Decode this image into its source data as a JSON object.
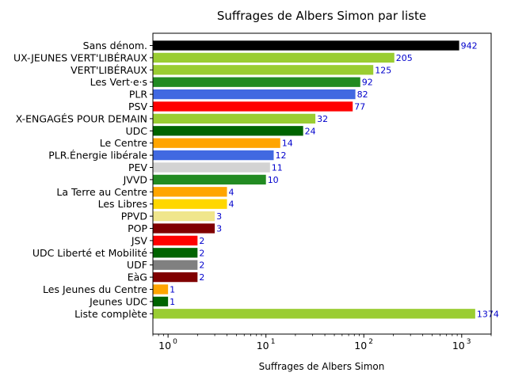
{
  "chart_data": {
    "type": "bar",
    "orientation": "horizontal",
    "title": "Suffrages de Albers Simon par liste",
    "xlabel": "Suffrages de Albers Simon",
    "ylabel": "",
    "xscale": "log",
    "xlim": [
      0.7,
      2000
    ],
    "x_ticks": [
      {
        "value": 1,
        "base": "10",
        "exp": "0"
      },
      {
        "value": 10,
        "base": "10",
        "exp": "1"
      },
      {
        "value": 100,
        "base": "10",
        "exp": "2"
      },
      {
        "value": 1000,
        "base": "10",
        "exp": "3"
      }
    ],
    "categories": [
      "Sans dénom.",
      "UX-JEUNES VERT'LIBÉRAUX",
      "VERT'LIBÉRAUX",
      "Les Vert·e·s",
      "PLR",
      "PSV",
      "X-ENGAGÉS POUR DEMAIN",
      "UDC",
      "Le Centre",
      "PLR.Énergie libérale",
      "PEV",
      "JVVD",
      "La Terre au Centre",
      "Les Libres",
      "PPVD",
      "POP",
      "JSV",
      "UDC Liberté et Mobilité",
      "UDF",
      "EàG",
      "Les Jeunes du Centre",
      "Jeunes UDC",
      "Liste complète"
    ],
    "values": [
      942,
      205,
      125,
      92,
      82,
      77,
      32,
      24,
      14,
      12,
      11,
      10,
      4,
      4,
      3,
      3,
      2,
      2,
      2,
      2,
      1,
      1,
      1374
    ],
    "colors": [
      "#000000",
      "#9acd32",
      "#9acd32",
      "#228b22",
      "#4169e1",
      "#ff0000",
      "#9acd32",
      "#006400",
      "#ffa500",
      "#4169e1",
      "#d3d3d3",
      "#228b22",
      "#ffa500",
      "#ffd700",
      "#f0e68c",
      "#800000",
      "#ff0000",
      "#006400",
      "#808080",
      "#800000",
      "#ffa500",
      "#006400",
      "#9acd32"
    ],
    "value_label_color": "#0000cc"
  }
}
